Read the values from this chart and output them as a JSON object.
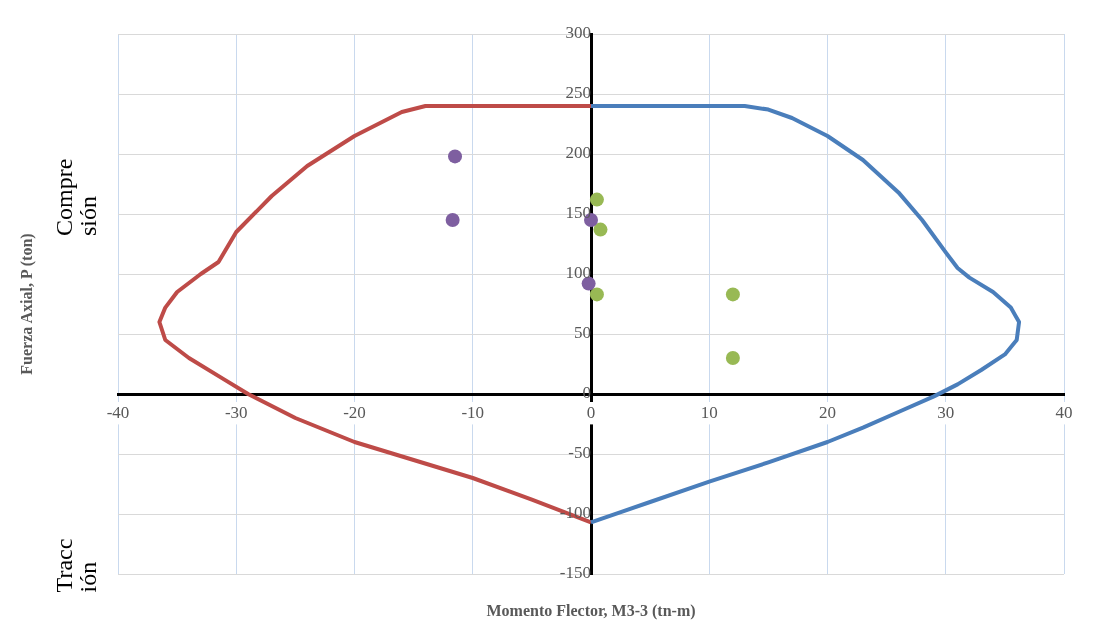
{
  "chart_data": {
    "type": "scatter",
    "xlabel": "Momento Flector, M3-3 (tn-m)",
    "ylabel": "Fuerza Axial, P (ton)",
    "annotations": [
      "Compre sión",
      "Tracc ión"
    ],
    "xlim": [
      -40,
      40
    ],
    "xticks": [
      -40,
      -30,
      -20,
      -10,
      0,
      10,
      20,
      30,
      40
    ],
    "ylim": [
      -150,
      300
    ],
    "yticks": [
      -150,
      -100,
      -50,
      0,
      50,
      100,
      150,
      200,
      250,
      300
    ],
    "grid": true,
    "series": [
      {
        "type": "line",
        "marker": "none",
        "color": "#4a7ebb",
        "x": [
          0,
          13,
          15,
          17,
          20,
          23,
          26,
          28,
          30,
          31,
          32,
          34,
          35.5,
          36.2,
          36,
          35,
          33,
          31,
          29,
          26,
          23,
          20,
          15,
          10,
          5,
          0
        ],
        "values": [
          240,
          240,
          237,
          230,
          215,
          195,
          168,
          145,
          118,
          105,
          97,
          85,
          72,
          60,
          45,
          33,
          20,
          8,
          -2,
          -15,
          -28,
          -40,
          -57,
          -73,
          -90,
          -107
        ]
      },
      {
        "type": "line",
        "marker": "none",
        "color": "#be4b48",
        "x": [
          0,
          -14,
          -16,
          -20,
          -24,
          -27,
          -30,
          -31.5,
          -33,
          -35,
          -36,
          -36.5,
          -36,
          -34,
          -31,
          -29,
          -25,
          -20,
          -15,
          -10,
          -5,
          0
        ],
        "values": [
          240,
          240,
          235,
          215,
          190,
          165,
          135,
          110,
          100,
          85,
          72,
          60,
          45,
          30,
          12,
          0,
          -20,
          -40,
          -55,
          -70,
          -88,
          -107
        ]
      },
      {
        "type": "scatter",
        "marker": "circle",
        "color": "#7e5fa0",
        "x": [
          -11.5,
          -11.7,
          0,
          -0.2
        ],
        "values": [
          198,
          145,
          145,
          92
        ]
      },
      {
        "type": "scatter",
        "marker": "circle",
        "color": "#98b954",
        "x": [
          0.5,
          0.8,
          0.5,
          12,
          12
        ],
        "values": [
          162,
          137,
          83,
          83,
          30
        ]
      }
    ]
  }
}
